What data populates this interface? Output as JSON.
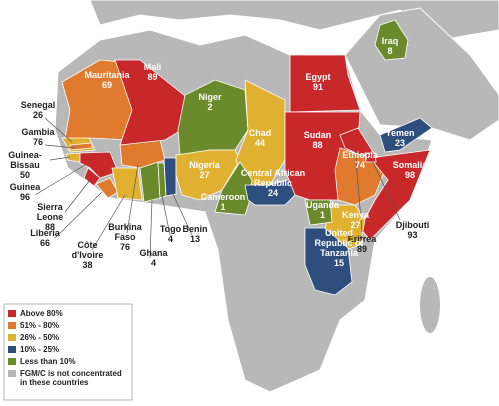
{
  "countries": [
    {
      "name": "Senegal",
      "value": 26,
      "group": 2
    },
    {
      "name": "Gambia",
      "value": 76,
      "group": 1
    },
    {
      "name": "Guinea-Bissau",
      "value": 50,
      "group": 2
    },
    {
      "name": "Guinea",
      "value": 96,
      "group": 0
    },
    {
      "name": "Sierra Leone",
      "value": 88,
      "group": 0
    },
    {
      "name": "Liberia",
      "value": 66,
      "group": 1
    },
    {
      "name": "Côte d'Ivoire",
      "value": 38,
      "group": 2
    },
    {
      "name": "Burkina Faso",
      "value": 76,
      "group": 1
    },
    {
      "name": "Ghana",
      "value": 4,
      "group": 4
    },
    {
      "name": "Togo",
      "value": 4,
      "group": 4
    },
    {
      "name": "Benin",
      "value": 13,
      "group": 3
    },
    {
      "name": "Mauritania",
      "value": 69,
      "group": 1
    },
    {
      "name": "Mali",
      "value": 89,
      "group": 0
    },
    {
      "name": "Niger",
      "value": 2,
      "group": 4
    },
    {
      "name": "Nigeria",
      "value": 27,
      "group": 2
    },
    {
      "name": "Chad",
      "value": 44,
      "group": 2
    },
    {
      "name": "Cameroon",
      "value": 1,
      "group": 4
    },
    {
      "name": "Central African Republic",
      "value": 24,
      "group": 3
    },
    {
      "name": "Egypt",
      "value": 91,
      "group": 0
    },
    {
      "name": "Sudan",
      "value": 88,
      "group": 0
    },
    {
      "name": "Ethiopia",
      "value": 74,
      "group": 1
    },
    {
      "name": "Somalia",
      "value": 98,
      "group": 0
    },
    {
      "name": "Djibouti",
      "value": 93,
      "group": 0
    },
    {
      "name": "Eritrea",
      "value": 89,
      "group": 0
    },
    {
      "name": "Kenya",
      "value": 27,
      "group": 2
    },
    {
      "name": "Uganda",
      "value": 1,
      "group": 4
    },
    {
      "name": "United Republic of Tanzania",
      "value": 15,
      "group": 3
    },
    {
      "name": "Yemen",
      "value": 23,
      "group": 3
    },
    {
      "name": "Iraq",
      "value": 8,
      "group": 4
    }
  ],
  "legend": [
    {
      "label": "Above 80%",
      "color": "#c8282a"
    },
    {
      "label": "51% - 80%",
      "color": "#e07a2e"
    },
    {
      "label": "26% - 50%",
      "color": "#e0b030"
    },
    {
      "label": "10% - 25%",
      "color": "#2e4f7e"
    },
    {
      "label": "Less than 10%",
      "color": "#6b8a2c"
    },
    {
      "label": "FGM/C is not concentrated in these countries",
      "color": "#b8b8b8"
    }
  ]
}
